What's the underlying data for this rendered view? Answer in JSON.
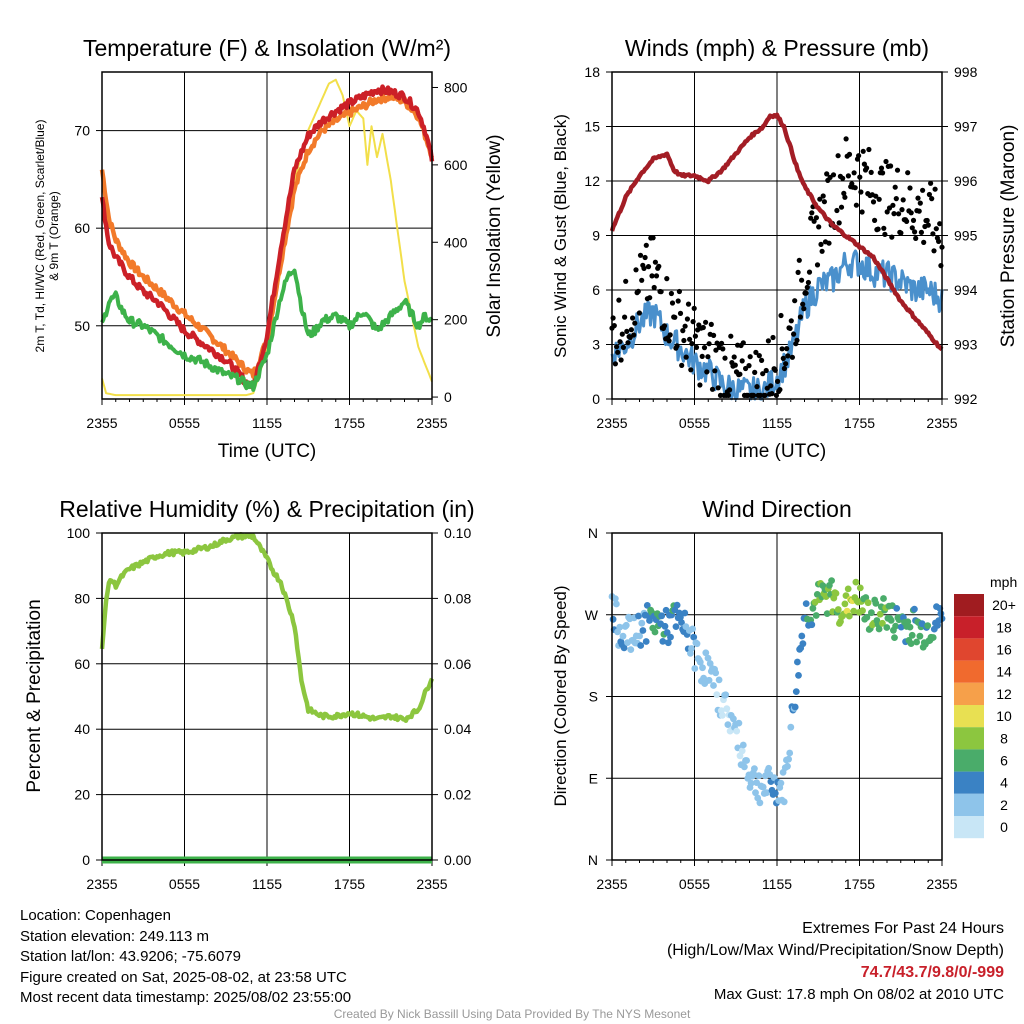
{
  "chart_data": [
    {
      "type": "line",
      "title": "Temperature (F) & Insolation (W/m²)",
      "xlabel": "Time (UTC)",
      "ylabel_left": "2m T, Td, HI/WC (Red, Green, Scarlet/Blue) & 9m T (Orange)",
      "ylabel_right": "Solar Insolation (Yellow)",
      "x_ticks": [
        "2355",
        "0555",
        "1155",
        "1755",
        "2355"
      ],
      "y_left_ticks": [
        50,
        60,
        70
      ],
      "y_left_lim": [
        42.5,
        76
      ],
      "y_right_ticks": [
        0,
        200,
        400,
        600,
        800
      ],
      "y_right_lim": [
        -5,
        840
      ],
      "series": [
        {
          "name": "2m T",
          "color": "#cc2027",
          "axis": "left",
          "x": [
            0,
            0.5,
            1,
            2,
            3,
            4,
            5,
            6,
            7,
            8,
            9,
            10,
            10.5,
            11,
            12,
            13,
            14,
            15,
            16,
            17,
            18,
            19,
            20,
            21,
            22,
            23,
            23.5,
            24
          ],
          "values": [
            63.0,
            58.5,
            57.0,
            55.0,
            53.5,
            52.5,
            51.0,
            49.5,
            48.5,
            47.5,
            46.5,
            45.0,
            44.2,
            43.8,
            49.0,
            58.0,
            66.0,
            69.5,
            71.0,
            72.0,
            72.8,
            73.5,
            74.2,
            74.0,
            73.5,
            72.0,
            70.0,
            67.0
          ]
        },
        {
          "name": "9m T",
          "color": "#f27a2a",
          "axis": "left",
          "x": [
            0,
            0.5,
            1,
            2,
            3,
            4,
            5,
            6,
            7,
            8,
            9,
            10,
            10.5,
            11,
            12,
            13,
            14,
            15,
            16,
            17,
            18,
            19,
            20,
            21,
            22,
            23,
            23.5,
            24
          ],
          "values": [
            66.0,
            61.0,
            58.8,
            56.5,
            55.0,
            53.8,
            52.5,
            51.2,
            50.0,
            48.8,
            47.5,
            46.2,
            45.5,
            45.0,
            48.5,
            56.5,
            64.0,
            68.0,
            70.0,
            71.0,
            71.8,
            72.5,
            73.2,
            73.5,
            73.0,
            71.5,
            69.5,
            67.5
          ]
        },
        {
          "name": "2m Td",
          "color": "#3db24a",
          "axis": "left",
          "x": [
            0,
            0.5,
            1,
            1.5,
            2,
            3,
            4,
            5,
            6,
            7,
            8,
            9,
            10,
            10.5,
            11,
            12,
            13,
            13.5,
            14,
            14.5,
            15,
            15.5,
            16,
            17,
            18,
            19,
            20,
            21,
            22,
            23,
            23.5,
            24
          ],
          "values": [
            50.0,
            52.5,
            53.0,
            51.5,
            50.5,
            50.0,
            49.0,
            48.0,
            47.0,
            46.5,
            45.8,
            45.0,
            44.5,
            44.0,
            43.8,
            47.0,
            53.0,
            55.0,
            56.0,
            52.0,
            49.0,
            49.5,
            50.5,
            51.0,
            50.0,
            51.5,
            49.5,
            51.0,
            52.5,
            50.0,
            51.0,
            50.5
          ]
        },
        {
          "name": "Solar Insolation",
          "color": "#f2df4a",
          "axis": "right",
          "x": [
            0,
            0.3,
            1,
            9,
            10.5,
            11,
            12,
            13,
            14,
            15,
            16,
            16.5,
            17,
            17.5,
            18,
            18.5,
            19,
            19.3,
            19.6,
            20,
            20.4,
            21,
            22,
            23,
            24
          ],
          "values": [
            48,
            10,
            5,
            5,
            5,
            10,
            120,
            330,
            560,
            690,
            770,
            810,
            820,
            780,
            700,
            740,
            720,
            600,
            700,
            620,
            680,
            560,
            300,
            130,
            40
          ]
        }
      ]
    },
    {
      "type": "line",
      "title": "Winds (mph) & Pressure (mb)",
      "xlabel": "Time (UTC)",
      "ylabel_left": "Sonic Wind & Gust (Blue, Black)",
      "ylabel_right": "Station Pressure (Maroon)",
      "x_ticks": [
        "2355",
        "0555",
        "1155",
        "1755",
        "2355"
      ],
      "y_left_ticks": [
        0,
        3,
        6,
        9,
        12,
        15,
        18
      ],
      "y_left_lim": [
        0,
        18
      ],
      "y_right_ticks": [
        992,
        993,
        994,
        995,
        996,
        997,
        998
      ],
      "y_right_lim": [
        992,
        998
      ],
      "series": [
        {
          "name": "Sonic Wind",
          "color": "#4a90cc",
          "axis": "left",
          "x": [
            0,
            1,
            2,
            3,
            4,
            5,
            6,
            7,
            8,
            9,
            10,
            11,
            12,
            13,
            14,
            15,
            16,
            17,
            18,
            19,
            20,
            21,
            22,
            23,
            24
          ],
          "values": [
            2.5,
            3.0,
            4.2,
            4.8,
            3.5,
            2.8,
            2.0,
            1.5,
            0.8,
            0.5,
            0.4,
            0.4,
            1.2,
            2.5,
            5.0,
            6.2,
            6.5,
            7.5,
            7.5,
            7.0,
            6.8,
            6.5,
            6.0,
            6.0,
            5.5
          ]
        },
        {
          "name": "Gust",
          "color": "#000000",
          "axis": "left",
          "x": [
            0,
            1,
            2,
            3,
            4,
            5,
            6,
            7,
            8,
            9,
            10,
            11,
            12,
            13,
            14,
            15,
            16,
            17,
            18,
            19,
            20,
            21,
            22,
            23,
            24
          ],
          "values": [
            3.5,
            4.5,
            6.0,
            7.0,
            5.0,
            4.0,
            3.0,
            2.5,
            1.8,
            1.2,
            1.0,
            1.0,
            2.2,
            3.5,
            7.0,
            9.5,
            11.0,
            12.5,
            12.5,
            11.5,
            11.0,
            11.0,
            10.5,
            10.0,
            9.0
          ]
        },
        {
          "name": "Station Pressure",
          "color": "#a31d25",
          "axis": "right",
          "x": [
            0,
            1,
            2,
            3,
            4,
            4.5,
            5,
            6,
            7,
            8,
            9,
            10,
            11,
            11.5,
            12,
            12.5,
            13,
            13.5,
            14,
            15,
            16,
            17,
            18,
            19,
            20,
            21,
            22,
            23,
            24
          ],
          "values": [
            995.1,
            995.7,
            996.1,
            996.4,
            996.5,
            996.2,
            996.1,
            996.1,
            996.0,
            996.2,
            996.5,
            996.8,
            997.0,
            997.2,
            997.2,
            997.0,
            996.6,
            996.2,
            995.9,
            995.5,
            995.2,
            995.0,
            994.8,
            994.6,
            994.2,
            993.8,
            993.5,
            993.2,
            992.9
          ]
        }
      ]
    },
    {
      "type": "line",
      "title": "Relative Humidity (%) & Precipitation (in)",
      "xlabel": "",
      "ylabel_left": "Percent & Precipitation",
      "x_ticks": [
        "2355",
        "0555",
        "1155",
        "1755",
        "2355"
      ],
      "y_left_ticks": [
        0,
        20,
        40,
        60,
        80,
        100
      ],
      "y_left_lim": [
        0,
        100
      ],
      "y_right_ticks": [
        "0.00",
        "0.02",
        "0.04",
        "0.06",
        "0.08",
        "0.10"
      ],
      "y_right_lim": [
        0,
        0.1
      ],
      "series": [
        {
          "name": "Relative Humidity",
          "color": "#8cc63f",
          "axis": "left",
          "x": [
            0,
            0.3,
            0.6,
            1,
            1.5,
            2,
            3,
            4,
            5,
            6,
            7,
            8,
            9,
            10,
            11,
            12,
            12.5,
            13,
            14,
            14.5,
            15,
            15.5,
            16,
            17,
            18,
            19,
            20,
            21,
            22,
            23,
            23.5,
            24
          ],
          "values": [
            64,
            80,
            86,
            84,
            87,
            89,
            91,
            93,
            94,
            94,
            95,
            96,
            98,
            99,
            99,
            92,
            88,
            85,
            72,
            55,
            46,
            45,
            44,
            44,
            45,
            44,
            43,
            44,
            43,
            46,
            51,
            56
          ]
        },
        {
          "name": "Precipitation",
          "color": "#3db24a",
          "axis": "right",
          "x": [
            0,
            24
          ],
          "values": [
            0,
            0
          ]
        }
      ]
    },
    {
      "type": "scatter",
      "title": "Wind Direction",
      "xlabel": "",
      "ylabel_left": "Direction (Colored By Speed)",
      "x_ticks": [
        "2355",
        "0555",
        "1155",
        "1755",
        "2355"
      ],
      "y_ticks": [
        "N",
        "E",
        "S",
        "W",
        "N"
      ],
      "y_lim": [
        0,
        360
      ],
      "colorbar": {
        "label": "mph",
        "ticks": [
          "20+",
          "18",
          "16",
          "14",
          "12",
          "10",
          "8",
          "6",
          "4",
          "2",
          "0"
        ],
        "colors": [
          "#a01c20",
          "#c8202a",
          "#e0462f",
          "#f06a2e",
          "#f6a04a",
          "#e8e052",
          "#8cc63f",
          "#4aac6a",
          "#3a82c4",
          "#8ec4ea",
          "#c8e6f6"
        ]
      },
      "series": [
        {
          "name": "",
          "x": [
            0,
            0.5,
            1,
            1.5,
            2,
            2.5,
            3,
            3.5,
            4,
            4.5,
            5,
            5.5,
            6,
            6.5,
            7,
            7.5,
            8,
            8.5,
            9,
            9.5,
            10,
            10.5,
            11,
            11.5,
            12,
            12.5,
            14,
            14.5,
            15,
            15.5,
            16,
            16.5,
            17,
            17.5,
            18,
            18.5,
            19,
            19.5,
            20,
            20.5,
            21,
            21.5,
            22,
            22.5,
            23,
            23.5,
            24
          ],
          "values": [
            280,
            255,
            250,
            245,
            255,
            260,
            265,
            260,
            255,
            265,
            260,
            250,
            230,
            215,
            210,
            190,
            175,
            160,
            140,
            120,
            95,
            85,
            80,
            82,
            80,
            78,
            270,
            275,
            285,
            290,
            290,
            280,
            275,
            290,
            285,
            270,
            265,
            275,
            270,
            260,
            265,
            255,
            260,
            250,
            255,
            260,
            265
          ],
          "speeds": [
            3,
            3,
            2,
            2,
            3,
            4,
            6,
            5,
            4,
            5,
            4,
            3,
            2,
            2,
            2,
            2,
            1,
            1,
            1,
            1,
            2,
            2,
            2,
            3,
            3,
            2,
            4,
            5,
            7,
            7,
            7,
            8,
            8,
            9,
            8,
            6,
            7,
            7,
            6,
            6,
            5,
            6,
            5,
            5,
            6,
            4,
            4
          ]
        }
      ]
    }
  ],
  "info": {
    "location": "Location: Copenhagen",
    "elevation": "Station elevation: 249.113 m",
    "latlon": "Station lat/lon: 43.9206; -75.6079",
    "created": "Figure created on Sat, 2025-08-02, at 23:58 UTC",
    "recent": "Most recent data timestamp: 2025/08/02 23:55:00"
  },
  "extremes": {
    "title": "Extremes For Past 24 Hours",
    "subtitle": "(High/Low/Max Wind/Precipitation/Snow Depth)",
    "values": "74.7/43.7/9.8/0/-999",
    "max_gust": "Max Gust: 17.8 mph On 08/02 at 2010 UTC"
  },
  "credit": "Created By Nick Bassill Using Data Provided By The NYS Mesonet"
}
